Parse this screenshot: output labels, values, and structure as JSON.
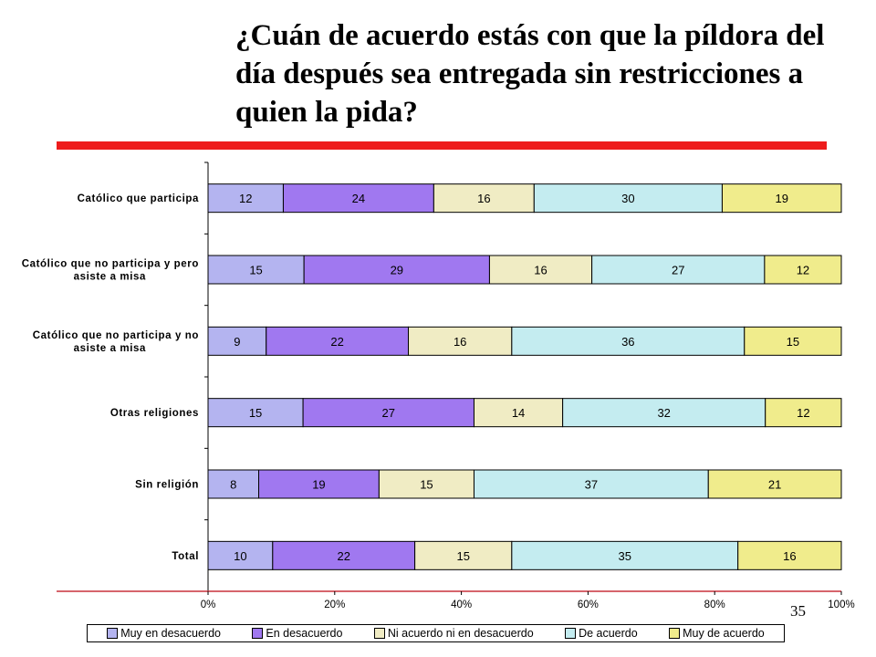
{
  "title": "¿Cuán de acuerdo estás con que la píldora del día después sea entregada sin restricciones a quien la pida?",
  "page_number": "35",
  "colors": {
    "title_rule": "#ee1c1c",
    "bottom_rule": "#c8323c"
  },
  "chart_data": {
    "type": "bar",
    "orientation": "horizontal",
    "stacked": "percent",
    "categories": [
      "Católico que participa",
      "Católico que no participa y pero asiste a misa",
      "Católico que no participa y no asiste a misa",
      "Otras religiones",
      "Sin religión",
      "Total"
    ],
    "series": [
      {
        "name": "Muy en desacuerdo",
        "color": "#b4b4f0",
        "values": [
          12,
          15,
          9,
          15,
          8,
          10
        ]
      },
      {
        "name": "En desacuerdo",
        "color": "#a078f0",
        "values": [
          24,
          29,
          22,
          27,
          19,
          22
        ]
      },
      {
        "name": "Ni acuerdo ni en desacuerdo",
        "color": "#f0ecc4",
        "values": [
          16,
          16,
          16,
          14,
          15,
          15
        ]
      },
      {
        "name": "De acuerdo",
        "color": "#c4ecf0",
        "values": [
          30,
          27,
          36,
          32,
          37,
          35
        ]
      },
      {
        "name": "Muy de acuerdo",
        "color": "#f0ec8c",
        "values": [
          19,
          12,
          15,
          12,
          21,
          16
        ]
      }
    ],
    "x_ticks": [
      "0%",
      "20%",
      "40%",
      "60%",
      "80%",
      "100%"
    ],
    "xlim": [
      0,
      100
    ],
    "grid": false,
    "legend_position": "bottom"
  }
}
